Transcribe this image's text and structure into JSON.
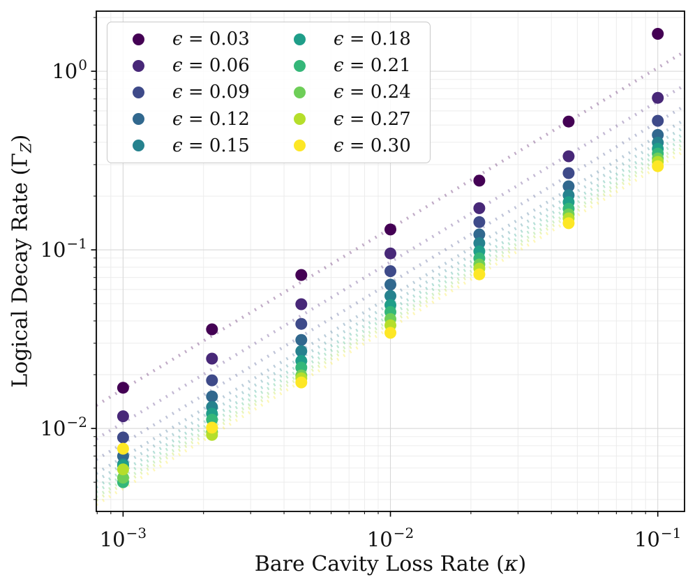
{
  "figure": {
    "background": "#ffffff"
  },
  "axes": {
    "xlabel": "Bare Cavity Loss Rate (κ)",
    "xlabel_parts": [
      "Bare Cavity Loss Rate (",
      "κ",
      ")"
    ],
    "ylabel": "Logical Decay Rate (Γ_Z)",
    "ylabel_parts": [
      "Logical Decay Rate (",
      "Γ",
      "Z",
      ")"
    ]
  },
  "style": {
    "spine_color": "#000000",
    "grid_major_color": "#d8d8d8",
    "grid_minor_color": "#eaeaea",
    "legend_border_color": "#c8c8c8",
    "tick_label_color": "#111111",
    "fit_line_opacity": 0.33
  },
  "chart_data": {
    "type": "scatter",
    "title": "",
    "xlabel": "Bare Cavity Loss Rate (κ)",
    "ylabel": "Logical Decay Rate (Γ_Z)",
    "xscale": "log",
    "yscale": "log",
    "grid": true,
    "xlim": [
      0.000794,
      0.1259
    ],
    "ylim": [
      0.00343,
      2.17
    ],
    "x_ticks": [
      {
        "value": 0.001,
        "exponent": -3
      },
      {
        "value": 0.01,
        "exponent": -2
      },
      {
        "value": 0.1,
        "exponent": -1
      }
    ],
    "y_ticks": [
      {
        "value": 1.0,
        "exponent": 0
      },
      {
        "value": 0.1,
        "exponent": -1
      },
      {
        "value": 0.01,
        "exponent": -2
      }
    ],
    "legend": {
      "position": "upper left",
      "columns": 2,
      "symbol": "ϵ",
      "separator": " = "
    },
    "x": [
      0.001,
      0.00215,
      0.00464,
      0.01,
      0.0215,
      0.0464,
      0.1
    ],
    "series": [
      {
        "label": "ϵ = 0.03",
        "epsilon": "0.03",
        "color": "#440154",
        "values": [
          0.0169,
          0.0359,
          0.0723,
          0.13,
          0.244,
          0.523,
          1.62
        ],
        "fit": {
          "at_kappa": 0.1,
          "value": 1.046,
          "slope": 0.9
        }
      },
      {
        "label": "ϵ = 0.06",
        "epsilon": "0.06",
        "color": "#482878",
        "values": [
          0.0117,
          0.0246,
          0.0496,
          0.0955,
          0.171,
          0.334,
          0.71
        ],
        "fit": {
          "at_kappa": 0.1,
          "value": 0.679,
          "slope": 0.9
        }
      },
      {
        "label": "ϵ = 0.09",
        "epsilon": "0.09",
        "color": "#3e4a89",
        "values": [
          0.0089,
          0.0186,
          0.0385,
          0.076,
          0.143,
          0.269,
          0.528
        ],
        "fit": {
          "at_kappa": 0.1,
          "value": 0.52,
          "slope": 0.9
        }
      },
      {
        "label": "ϵ = 0.12",
        "epsilon": "0.12",
        "color": "#31688e",
        "values": [
          0.007,
          0.0151,
          0.0313,
          0.0638,
          0.122,
          0.227,
          0.44
        ],
        "fit": {
          "at_kappa": 0.1,
          "value": 0.435,
          "slope": 0.9
        }
      },
      {
        "label": "ϵ = 0.15",
        "epsilon": "0.15",
        "color": "#26828e",
        "values": [
          0.0063,
          0.0132,
          0.0271,
          0.0552,
          0.109,
          0.202,
          0.398
        ],
        "fit": {
          "at_kappa": 0.1,
          "value": 0.396,
          "slope": 0.9
        }
      },
      {
        "label": "ϵ = 0.18",
        "epsilon": "0.18",
        "color": "#1f9e89",
        "values": [
          0.0062,
          0.0121,
          0.0239,
          0.0491,
          0.098,
          0.185,
          0.368
        ],
        "fit": {
          "at_kappa": 0.1,
          "value": 0.365,
          "slope": 0.9
        }
      },
      {
        "label": "ϵ = 0.21",
        "epsilon": "0.21",
        "color": "#35b779",
        "values": [
          0.005,
          0.0112,
          0.0219,
          0.0449,
          0.0897,
          0.17,
          0.346
        ],
        "fit": {
          "at_kappa": 0.1,
          "value": 0.343,
          "slope": 0.9
        }
      },
      {
        "label": "ϵ = 0.24",
        "epsilon": "0.24",
        "color": "#6ece58",
        "values": [
          0.0053,
          0.0096,
          0.0198,
          0.041,
          0.0828,
          0.158,
          0.325
        ],
        "fit": {
          "at_kappa": 0.1,
          "value": 0.322,
          "slope": 0.9
        }
      },
      {
        "label": "ϵ = 0.27",
        "epsilon": "0.27",
        "color": "#b5de2b",
        "values": [
          0.0059,
          0.0092,
          0.0191,
          0.0378,
          0.0785,
          0.15,
          0.311
        ],
        "fit": {
          "at_kappa": 0.1,
          "value": 0.308,
          "slope": 0.9
        }
      },
      {
        "label": "ϵ = 0.30",
        "epsilon": "0.30",
        "color": "#fde725",
        "values": [
          0.0077,
          0.0101,
          0.0181,
          0.0343,
          0.0729,
          0.141,
          0.294
        ],
        "fit": {
          "at_kappa": 0.1,
          "value": 0.291,
          "slope": 0.9
        }
      }
    ]
  }
}
